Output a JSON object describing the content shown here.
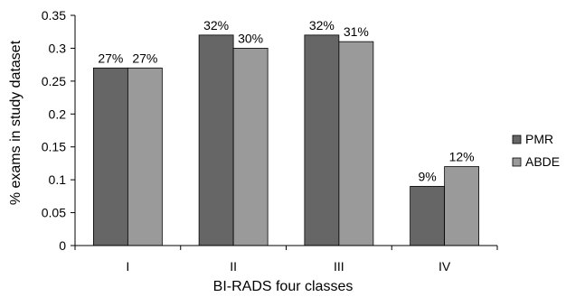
{
  "chart_data": {
    "type": "bar",
    "title": "",
    "xlabel": "BI-RADS four classes",
    "ylabel": "% exams in study dataset",
    "categories": [
      "I",
      "II",
      "III",
      "IV"
    ],
    "ylim": [
      0,
      0.35
    ],
    "yticks": [
      "0",
      "0.05",
      "0.1",
      "0.15",
      "0.2",
      "0.25",
      "0.3",
      "0.35"
    ],
    "grid": false,
    "legend_position": "right",
    "series": [
      {
        "name": "PMR",
        "color": "#666666",
        "values": [
          0.27,
          0.32,
          0.32,
          0.09
        ],
        "labels": [
          "27%",
          "32%",
          "32%",
          "9%"
        ]
      },
      {
        "name": "ABDE",
        "color": "#9a9a9a",
        "values": [
          0.27,
          0.3,
          0.31,
          0.12
        ],
        "labels": [
          "27%",
          "30%",
          "31%",
          "12%"
        ]
      }
    ]
  }
}
